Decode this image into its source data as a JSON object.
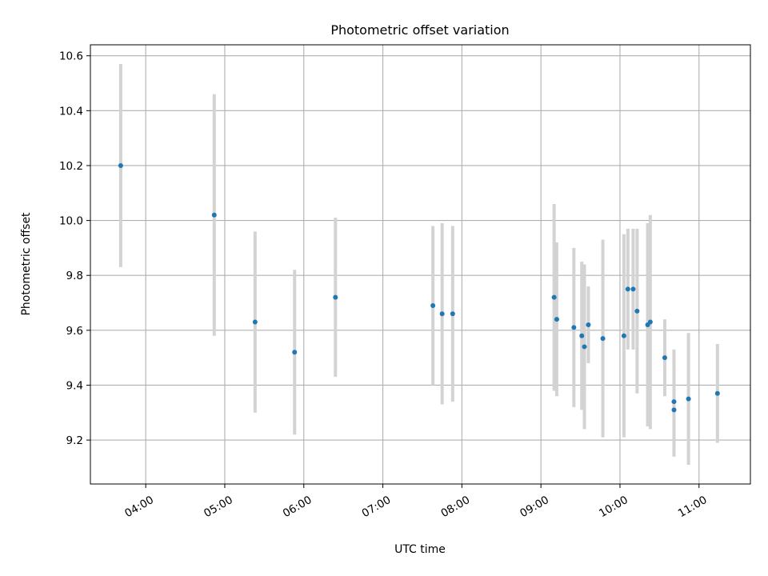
{
  "chart_data": {
    "type": "scatter",
    "title": "Photometric offset variation",
    "xlabel": "UTC time",
    "ylabel": "Photometric offset",
    "x_axis_type": "time",
    "xlim": [
      "03:18",
      "11:39"
    ],
    "ylim": [
      9.04,
      10.64
    ],
    "x_ticks": [
      "04:00",
      "05:00",
      "06:00",
      "07:00",
      "08:00",
      "09:00",
      "10:00",
      "11:00"
    ],
    "y_ticks": [
      "9.2",
      "9.4",
      "9.6",
      "9.8",
      "10.0",
      "10.2",
      "10.4",
      "10.6"
    ],
    "grid": true,
    "marker_color": "#1f77b4",
    "errorbar_color": "#d3d3d3",
    "series": [
      {
        "points": [
          {
            "x": "03:41",
            "y": 10.2,
            "err": 0.37
          },
          {
            "x": "04:52",
            "y": 10.02,
            "err": 0.44
          },
          {
            "x": "05:23",
            "y": 9.63,
            "err": 0.33
          },
          {
            "x": "05:53",
            "y": 9.52,
            "err": 0.3
          },
          {
            "x": "06:24",
            "y": 9.72,
            "err": 0.29
          },
          {
            "x": "07:38",
            "y": 9.69,
            "err": 0.29
          },
          {
            "x": "07:45",
            "y": 9.66,
            "err": 0.33
          },
          {
            "x": "07:53",
            "y": 9.66,
            "err": 0.32
          },
          {
            "x": "09:10",
            "y": 9.72,
            "err": 0.34
          },
          {
            "x": "09:12",
            "y": 9.64,
            "err": 0.28
          },
          {
            "x": "09:25",
            "y": 9.61,
            "err": 0.29
          },
          {
            "x": "09:31",
            "y": 9.58,
            "err": 0.27
          },
          {
            "x": "09:33",
            "y": 9.54,
            "err": 0.3
          },
          {
            "x": "09:36",
            "y": 9.62,
            "err": 0.14
          },
          {
            "x": "09:47",
            "y": 9.57,
            "err": 0.36
          },
          {
            "x": "10:03",
            "y": 9.58,
            "err": 0.37
          },
          {
            "x": "10:06",
            "y": 9.75,
            "err": 0.22
          },
          {
            "x": "10:10",
            "y": 9.75,
            "err": 0.22
          },
          {
            "x": "10:13",
            "y": 9.67,
            "err": 0.3
          },
          {
            "x": "10:21",
            "y": 9.62,
            "err": 0.37
          },
          {
            "x": "10:23",
            "y": 9.63,
            "err": 0.39
          },
          {
            "x": "10:34",
            "y": 9.5,
            "err": 0.14
          },
          {
            "x": "10:41",
            "y": 9.34,
            "err": 0.19
          },
          {
            "x": "10:41",
            "y": 9.31,
            "err": 0.17
          },
          {
            "x": "10:52",
            "y": 9.35,
            "err": 0.24
          },
          {
            "x": "11:14",
            "y": 9.37,
            "err": 0.18
          }
        ]
      }
    ]
  }
}
